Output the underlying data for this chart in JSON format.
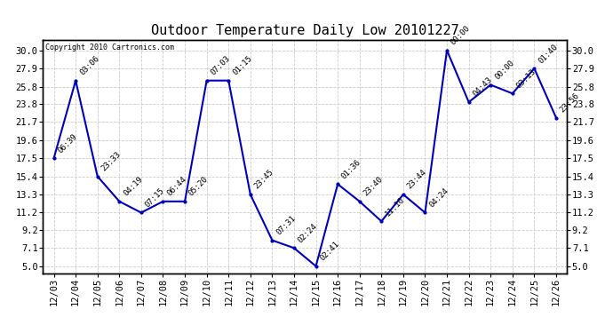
{
  "title": "Outdoor Temperature Daily Low 20101227",
  "copyright": "Copyright 2010 Cartronics.com",
  "x_labels": [
    "12/03",
    "12/04",
    "12/05",
    "12/06",
    "12/07",
    "12/08",
    "12/09",
    "12/10",
    "12/11",
    "12/12",
    "12/13",
    "12/14",
    "12/15",
    "12/16",
    "12/17",
    "12/18",
    "12/19",
    "12/20",
    "12/21",
    "12/22",
    "12/23",
    "12/24",
    "12/25",
    "12/26"
  ],
  "y_values": [
    17.5,
    26.5,
    15.4,
    12.5,
    11.2,
    12.5,
    12.5,
    26.5,
    26.5,
    13.3,
    8.0,
    7.1,
    5.0,
    14.5,
    12.5,
    10.2,
    13.3,
    11.2,
    30.0,
    24.0,
    26.0,
    25.0,
    27.9,
    22.2
  ],
  "time_labels": [
    "06:39",
    "03:06",
    "23:33",
    "04:19",
    "07:15",
    "06:44",
    "05:20",
    "07:03",
    "01:15",
    "23:45",
    "07:31",
    "02:24",
    "02:41",
    "01:36",
    "23:40",
    "11:10",
    "23:44",
    "04:24",
    "00:00",
    "04:43",
    "00:00",
    "03:13",
    "01:40",
    "23:56"
  ],
  "y_ticks": [
    5.0,
    7.1,
    9.2,
    11.2,
    13.3,
    15.4,
    17.5,
    19.6,
    21.7,
    23.8,
    25.8,
    27.9,
    30.0
  ],
  "ylim_bottom": 4.2,
  "ylim_top": 31.2,
  "xlim_left": -0.5,
  "xlim_right": 23.5,
  "line_color": "#0000bb",
  "bg_color": "#ffffff",
  "plot_bg_color": "#ffffff",
  "grid_color": "#cccccc",
  "title_fontsize": 11,
  "tick_fontsize": 7.5,
  "annot_fontsize": 6.5,
  "copyright_fontsize": 6,
  "linewidth": 1.5,
  "markersize": 4
}
